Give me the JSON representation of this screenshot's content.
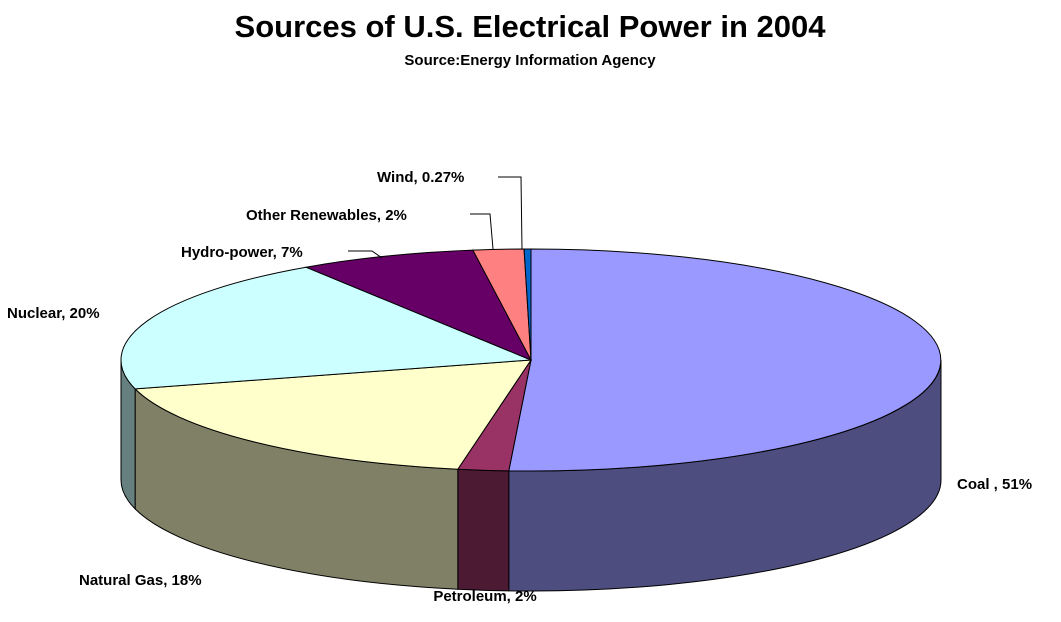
{
  "chart_data": {
    "type": "pie",
    "title": "Sources of U.S. Electrical Power in 2004",
    "subtitle": "Source:Energy Information Agency",
    "three_d": true,
    "legend": "none",
    "slices": [
      {
        "label": "Coal , 51%",
        "value": 51,
        "color": "#9999ff",
        "side_color": "#4d4d80"
      },
      {
        "label": "Petroleum, 2%",
        "value": 2,
        "color": "#993366",
        "side_color": "#4d1a33"
      },
      {
        "label": "Natural Gas, 18%",
        "value": 18,
        "color": "#ffffcc",
        "side_color": "#808066"
      },
      {
        "label": "Nuclear, 20%",
        "value": 20,
        "color": "#ccffff",
        "side_color": "#668080"
      },
      {
        "label": "Hydro-power, 7%",
        "value": 7,
        "color": "#660066",
        "side_color": "#330033"
      },
      {
        "label": "Other Renewables, 2%",
        "value": 2,
        "color": "#ff8080",
        "side_color": "#804040"
      },
      {
        "label": "Wind, 0.27%",
        "value": 0.27,
        "color": "#0066cc",
        "side_color": "#003366"
      }
    ]
  }
}
